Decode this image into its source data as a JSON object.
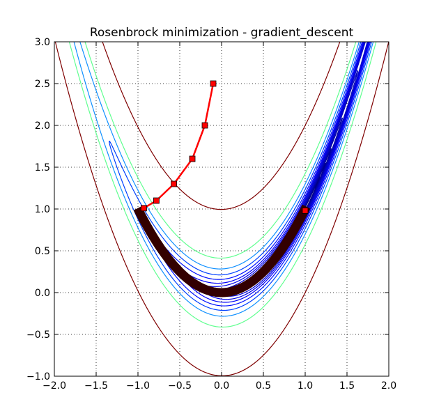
{
  "chart_data": {
    "type": "line",
    "title": "Rosenbrock minimization - gradient_descent",
    "xlabel": "",
    "ylabel": "",
    "xlim": [
      -2.0,
      2.0
    ],
    "ylim": [
      -1.0,
      3.0
    ],
    "xticks": [
      -2.0,
      -1.5,
      -1.0,
      -0.5,
      0.0,
      0.5,
      1.0,
      1.5,
      2.0
    ],
    "yticks": [
      -1.0,
      -0.5,
      0.0,
      0.5,
      1.0,
      1.5,
      2.0,
      2.5,
      3.0
    ],
    "xtick_labels": [
      "−2.0",
      "−1.5",
      "−1.0",
      "−0.5",
      "0.0",
      "0.5",
      "1.0",
      "1.5",
      "2.0"
    ],
    "ytick_labels": [
      "−1.0",
      "−0.5",
      "0.0",
      "0.5",
      "1.0",
      "1.5",
      "2.0",
      "2.5",
      "3.0"
    ],
    "grid": true,
    "contours": [
      {
        "level": 0.03,
        "color": "#00007f"
      },
      {
        "level": 0.06,
        "color": "#00008c"
      },
      {
        "level": 0.1,
        "color": "#000098"
      },
      {
        "level": 0.2,
        "color": "#0000a8"
      },
      {
        "level": 0.4,
        "color": "#0000b8"
      },
      {
        "level": 0.7,
        "color": "#0000c8"
      },
      {
        "level": 1.1,
        "color": "#0000d8"
      },
      {
        "level": 1.6,
        "color": "#0000e8"
      },
      {
        "level": 2.3,
        "color": "#0000f8"
      },
      {
        "level": 3.5,
        "color": "#0010ff"
      },
      {
        "level": 5.5,
        "color": "#0040ff"
      },
      {
        "level": 9,
        "color": "#1090ff"
      },
      {
        "level": 18,
        "color": "#60ff90"
      },
      {
        "level": 100,
        "color": "#7f0000"
      }
    ],
    "series": [
      {
        "color": "#ff0000",
        "marker": "square",
        "points": [
          [
            -0.1,
            2.5
          ],
          [
            -0.2,
            2.0
          ],
          [
            -0.35,
            1.6
          ],
          [
            -0.57,
            1.3
          ],
          [
            -0.78,
            1.1
          ],
          [
            -0.93,
            1.01
          ]
        ]
      },
      {
        "color": "#330000",
        "marker": "square",
        "x_range": [
          -0.98,
          0.99
        ]
      }
    ],
    "end_point": [
      1.0,
      0.98
    ]
  }
}
